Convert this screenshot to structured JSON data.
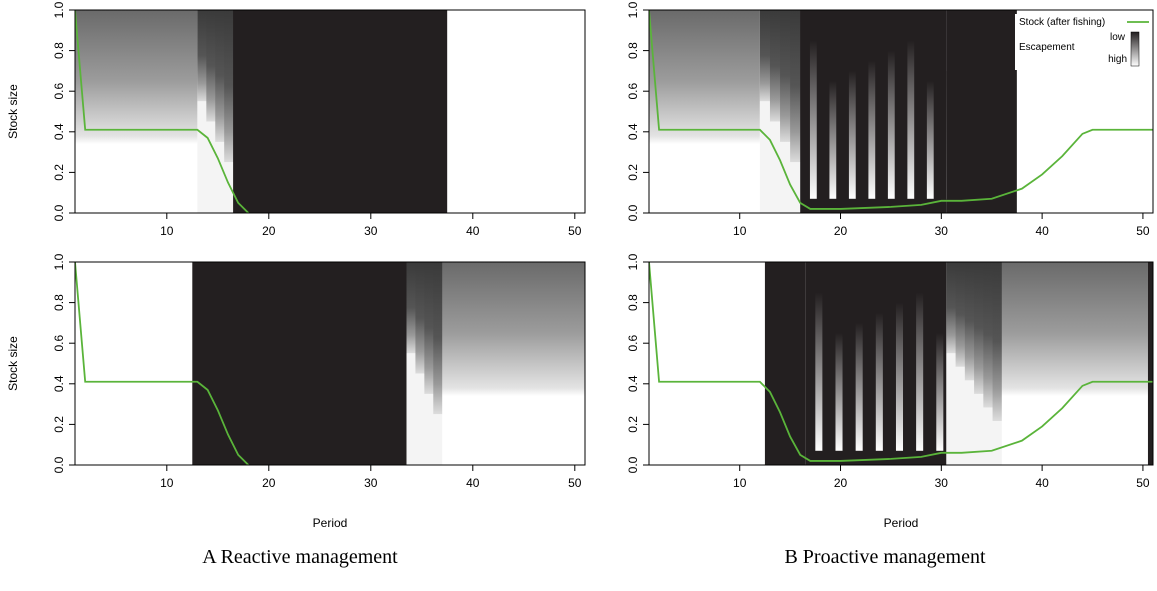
{
  "captions": {
    "a": "A Reactive management",
    "b": "B Proactive management"
  },
  "axis_labels": {
    "ylabel": "Stock size",
    "xlabel": "Period"
  },
  "legend": {
    "line": "Stock (after fishing)",
    "escapement": "Escapement",
    "low": "low",
    "high": "high"
  },
  "colors": {
    "line": "#5ab43a",
    "dark": "#231f20",
    "light": "#ffffff"
  },
  "chart_data": [
    {
      "id": "A-top",
      "type": "heatmap",
      "xlim": [
        1,
        51
      ],
      "ylim": [
        0,
        1
      ],
      "xticks": [
        10,
        20,
        30,
        40,
        50
      ],
      "yticks": [
        0.0,
        0.2,
        0.4,
        0.6,
        0.8,
        1.0
      ],
      "ytick_labels": [
        "0.0",
        "0.2",
        "0.4",
        "0.6",
        "0.8",
        "1.0"
      ],
      "ylabel": "Stock size",
      "xlabel": "",
      "segments": [
        {
          "from": 1,
          "to": 13,
          "kind": "gradient"
        },
        {
          "from": 13,
          "to": 16.5,
          "kind": "mixed"
        },
        {
          "from": 16.5,
          "to": 37.5,
          "kind": "dark"
        },
        {
          "from": 37.5,
          "to": 51,
          "kind": "white"
        }
      ],
      "stock": {
        "x": [
          1,
          2,
          3,
          5,
          8,
          10,
          13,
          14,
          15,
          16,
          17,
          18
        ],
        "y": [
          1.0,
          0.41,
          0.41,
          0.41,
          0.41,
          0.41,
          0.41,
          0.37,
          0.27,
          0.15,
          0.05,
          0.0
        ]
      }
    },
    {
      "id": "A-bottom",
      "type": "heatmap",
      "xlim": [
        1,
        51
      ],
      "ylim": [
        0,
        1
      ],
      "xticks": [
        10,
        20,
        30,
        40,
        50
      ],
      "yticks": [
        0.0,
        0.2,
        0.4,
        0.6,
        0.8,
        1.0
      ],
      "ytick_labels": [
        "0.0",
        "0.2",
        "0.4",
        "0.6",
        "0.8",
        "1.0"
      ],
      "ylabel": "Stock size",
      "xlabel": "Period",
      "segments": [
        {
          "from": 1,
          "to": 12.5,
          "kind": "white"
        },
        {
          "from": 12.5,
          "to": 33.5,
          "kind": "dark"
        },
        {
          "from": 33.5,
          "to": 37,
          "kind": "mixed"
        },
        {
          "from": 37,
          "to": 51,
          "kind": "gradient"
        }
      ],
      "stock": {
        "x": [
          1,
          2,
          3,
          5,
          8,
          10,
          13,
          14,
          15,
          16,
          17,
          18
        ],
        "y": [
          1.0,
          0.41,
          0.41,
          0.41,
          0.41,
          0.41,
          0.41,
          0.37,
          0.27,
          0.15,
          0.05,
          0.0
        ]
      }
    },
    {
      "id": "B-top",
      "type": "heatmap",
      "xlim": [
        1,
        51
      ],
      "ylim": [
        0,
        1
      ],
      "xticks": [
        10,
        20,
        30,
        40,
        50
      ],
      "yticks": [
        0.0,
        0.2,
        0.4,
        0.6,
        0.8,
        1.0
      ],
      "ytick_labels": [
        "0.0",
        "0.2",
        "0.4",
        "0.6",
        "0.8",
        "1.0"
      ],
      "ylabel": "",
      "xlabel": "",
      "segments": [
        {
          "from": 1,
          "to": 12,
          "kind": "gradient"
        },
        {
          "from": 12,
          "to": 16,
          "kind": "mixed"
        },
        {
          "from": 16,
          "to": 30.5,
          "kind": "striped"
        },
        {
          "from": 30.5,
          "to": 37.5,
          "kind": "dark"
        },
        {
          "from": 37.5,
          "to": 51,
          "kind": "white"
        }
      ],
      "stock": {
        "x": [
          1,
          2,
          5,
          10,
          12,
          13,
          14,
          15,
          16,
          17,
          20,
          25,
          28,
          30,
          32,
          35,
          38,
          40,
          42,
          44,
          45,
          51
        ],
        "y": [
          1.0,
          0.41,
          0.41,
          0.41,
          0.41,
          0.36,
          0.26,
          0.14,
          0.05,
          0.02,
          0.02,
          0.03,
          0.04,
          0.06,
          0.06,
          0.07,
          0.12,
          0.19,
          0.28,
          0.39,
          0.41,
          0.41
        ]
      },
      "has_legend": true
    },
    {
      "id": "B-bottom",
      "type": "heatmap",
      "xlim": [
        1,
        51
      ],
      "ylim": [
        0,
        1
      ],
      "xticks": [
        10,
        20,
        30,
        40,
        50
      ],
      "yticks": [
        0.0,
        0.2,
        0.4,
        0.6,
        0.8,
        1.0
      ],
      "ytick_labels": [
        "0.0",
        "0.2",
        "0.4",
        "0.6",
        "0.8",
        "1.0"
      ],
      "ylabel": "",
      "xlabel": "Period",
      "segments": [
        {
          "from": 1,
          "to": 12.5,
          "kind": "white"
        },
        {
          "from": 12.5,
          "to": 16.5,
          "kind": "dark"
        },
        {
          "from": 16.5,
          "to": 30.5,
          "kind": "striped"
        },
        {
          "from": 30.5,
          "to": 36,
          "kind": "mixed"
        },
        {
          "from": 36,
          "to": 50.5,
          "kind": "gradient"
        },
        {
          "from": 50.5,
          "to": 51,
          "kind": "dark"
        }
      ],
      "stock": {
        "x": [
          1,
          2,
          5,
          10,
          12,
          13,
          14,
          15,
          16,
          17,
          20,
          25,
          28,
          30,
          32,
          35,
          38,
          40,
          42,
          44,
          45,
          51
        ],
        "y": [
          1.0,
          0.41,
          0.41,
          0.41,
          0.41,
          0.36,
          0.26,
          0.14,
          0.05,
          0.02,
          0.02,
          0.03,
          0.04,
          0.06,
          0.06,
          0.07,
          0.12,
          0.19,
          0.28,
          0.39,
          0.41,
          0.41
        ]
      }
    }
  ]
}
